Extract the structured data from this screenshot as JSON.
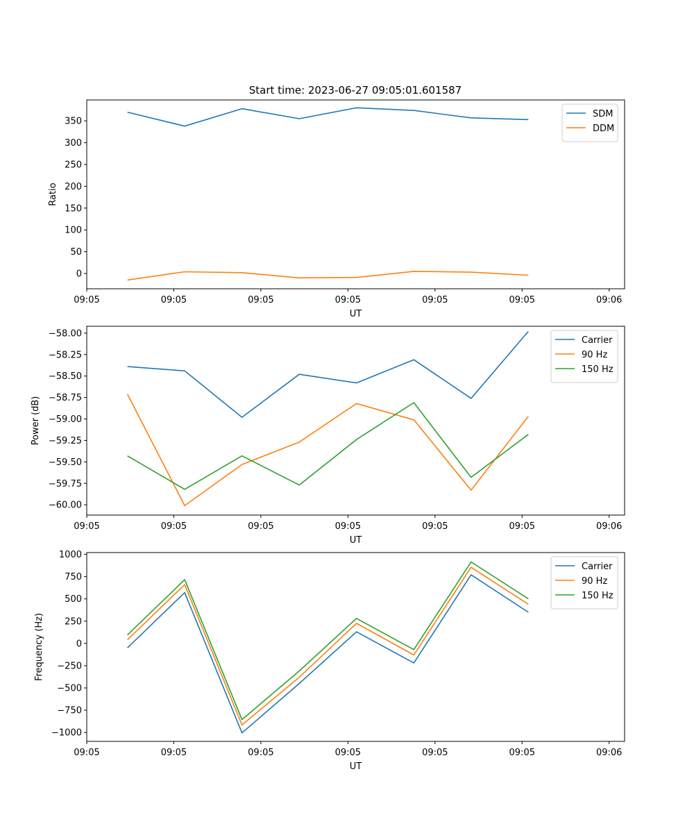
{
  "figure": {
    "title": "Start time: 2023-06-27 09:05:01.601587"
  },
  "chart_data": [
    {
      "type": "line",
      "xlabel": "UT",
      "ylabel": "Ratio",
      "x": [
        0,
        1,
        2,
        3,
        4,
        5,
        6,
        7
      ],
      "xlim": [
        -0.71,
        8.68
      ],
      "xticks": [
        {
          "value": -0.71,
          "label": "09:05"
        },
        {
          "value": 0.81,
          "label": "09:05"
        },
        {
          "value": 2.33,
          "label": "09:05"
        },
        {
          "value": 3.85,
          "label": "09:05"
        },
        {
          "value": 5.37,
          "label": "09:05"
        },
        {
          "value": 6.89,
          "label": "09:05"
        },
        {
          "value": 8.41,
          "label": "09:06"
        }
      ],
      "ylim": [
        -35,
        398
      ],
      "yticks": [
        0,
        50,
        100,
        150,
        200,
        250,
        300,
        350
      ],
      "legend": "top-right",
      "series": [
        {
          "name": "SDM",
          "color": "#1f77b4",
          "values": [
            370,
            338,
            378,
            355,
            380,
            374,
            357,
            353
          ]
        },
        {
          "name": "DDM",
          "color": "#ff7f0e",
          "values": [
            -15,
            4,
            2,
            -10,
            -9,
            5,
            3,
            -4
          ]
        }
      ]
    },
    {
      "type": "line",
      "xlabel": "UT",
      "ylabel": "Power (dB)",
      "x": [
        0,
        1,
        2,
        3,
        4,
        5,
        6,
        7
      ],
      "xlim": [
        -0.71,
        8.68
      ],
      "xticks": [
        {
          "value": -0.71,
          "label": "09:05"
        },
        {
          "value": 0.81,
          "label": "09:05"
        },
        {
          "value": 2.33,
          "label": "09:05"
        },
        {
          "value": 3.85,
          "label": "09:05"
        },
        {
          "value": 5.37,
          "label": "09:05"
        },
        {
          "value": 6.89,
          "label": "09:05"
        },
        {
          "value": 8.41,
          "label": "09:06"
        }
      ],
      "ylim": [
        -60.12,
        -57.92
      ],
      "yticks": [
        {
          "value": -60.0,
          "label": "−60.00"
        },
        {
          "value": -59.75,
          "label": "−59.75"
        },
        {
          "value": -59.5,
          "label": "−59.50"
        },
        {
          "value": -59.25,
          "label": "−59.25"
        },
        {
          "value": -59.0,
          "label": "−59.00"
        },
        {
          "value": -58.75,
          "label": "−58.75"
        },
        {
          "value": -58.5,
          "label": "−58.50"
        },
        {
          "value": -58.25,
          "label": "−58.25"
        },
        {
          "value": -58.0,
          "label": "−58.00"
        }
      ],
      "legend": "top-right",
      "series": [
        {
          "name": "Carrier",
          "color": "#1f77b4",
          "values": [
            -58.39,
            -58.44,
            -58.98,
            -58.48,
            -58.58,
            -58.31,
            -58.76,
            -57.98
          ]
        },
        {
          "name": "90 Hz",
          "color": "#ff7f0e",
          "values": [
            -58.71,
            -60.01,
            -59.53,
            -59.27,
            -58.82,
            -59.01,
            -59.83,
            -58.97
          ]
        },
        {
          "name": "150 Hz",
          "color": "#2ca02c",
          "values": [
            -59.43,
            -59.82,
            -59.43,
            -59.77,
            -59.24,
            -58.81,
            -59.68,
            -59.18
          ]
        }
      ]
    },
    {
      "type": "line",
      "xlabel": "UT",
      "ylabel": "Frequency (Hz)",
      "x": [
        0,
        1,
        2,
        3,
        4,
        5,
        6,
        7
      ],
      "xlim": [
        -0.71,
        8.68
      ],
      "xticks": [
        {
          "value": -0.71,
          "label": "09:05"
        },
        {
          "value": 0.81,
          "label": "09:05"
        },
        {
          "value": 2.33,
          "label": "09:05"
        },
        {
          "value": 3.85,
          "label": "09:05"
        },
        {
          "value": 5.37,
          "label": "09:05"
        },
        {
          "value": 6.89,
          "label": "09:05"
        },
        {
          "value": 8.41,
          "label": "09:06"
        }
      ],
      "ylim": [
        -1100,
        1020
      ],
      "yticks": [
        {
          "value": -1000,
          "label": "−1000"
        },
        {
          "value": -750,
          "label": "−750"
        },
        {
          "value": -500,
          "label": "−500"
        },
        {
          "value": -250,
          "label": "−250"
        },
        {
          "value": 0,
          "label": "0"
        },
        {
          "value": 250,
          "label": "250"
        },
        {
          "value": 500,
          "label": "500"
        },
        {
          "value": 750,
          "label": "750"
        },
        {
          "value": 1000,
          "label": "1000"
        }
      ],
      "legend": "top-right",
      "series": [
        {
          "name": "Carrier",
          "color": "#1f77b4",
          "values": [
            -50,
            570,
            -1005,
            -450,
            130,
            -220,
            770,
            350
          ]
        },
        {
          "name": "90 Hz",
          "color": "#ff7f0e",
          "values": [
            40,
            660,
            -915,
            -380,
            225,
            -130,
            855,
            440
          ]
        },
        {
          "name": "150 Hz",
          "color": "#2ca02c",
          "values": [
            95,
            715,
            -855,
            -310,
            280,
            -70,
            915,
            500
          ]
        }
      ]
    }
  ]
}
